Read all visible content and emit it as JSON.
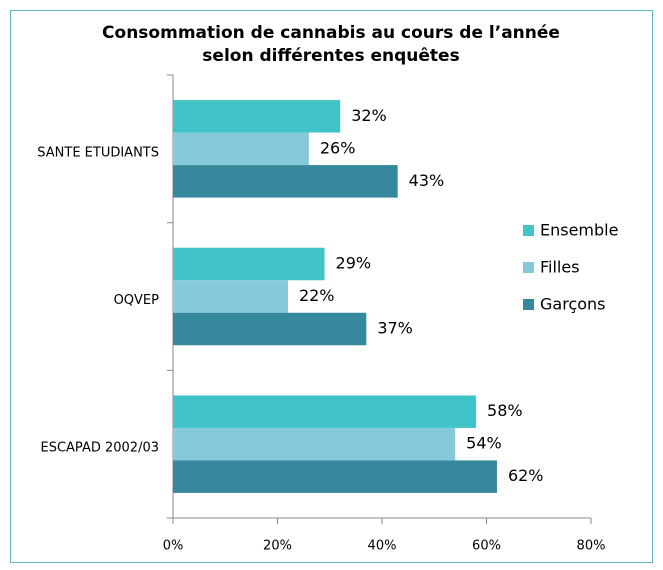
{
  "chart_data": {
    "type": "bar",
    "orientation": "horizontal",
    "title": [
      "Consommation de cannabis au cours de l’année",
      "selon différentes enquêtes"
    ],
    "categories": [
      "SANTE ETUDIANTS",
      "OQVEP",
      "ESCAPAD 2002/03"
    ],
    "series": [
      {
        "name": "Ensemble",
        "color": "#40c4c8",
        "values": [
          32,
          29,
          58
        ],
        "value_labels": [
          "32%",
          "29%",
          "58%"
        ]
      },
      {
        "name": "Filles",
        "color": "#86c9db",
        "values": [
          26,
          22,
          54
        ],
        "value_labels": [
          "26%",
          "22%",
          "54%"
        ]
      },
      {
        "name": "Garçons",
        "color": "#36889d",
        "values": [
          43,
          37,
          62
        ],
        "value_labels": [
          "43%",
          "37%",
          "62%"
        ]
      }
    ],
    "xlim": [
      0,
      80
    ],
    "xticks": [
      {
        "value": 0,
        "label": "0%"
      },
      {
        "value": 20,
        "label": "20%"
      },
      {
        "value": 40,
        "label": "40%"
      },
      {
        "value": 60,
        "label": "60%"
      },
      {
        "value": 80,
        "label": "80%"
      }
    ],
    "grid": false,
    "legend": "right"
  }
}
